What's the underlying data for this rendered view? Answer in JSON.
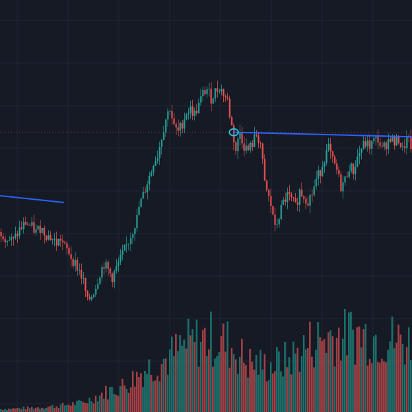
{
  "chart_data": {
    "type": "candlestick",
    "title": "",
    "xlabel": "",
    "ylabel": "",
    "grid": true,
    "legend": "none",
    "colors": {
      "background": "#161a25",
      "grid": "#1f2533",
      "up": "#26a69a",
      "down": "#ef5350",
      "volume_up": "#1f7e77",
      "volume_down": "#b8474a",
      "trendline": "#2962ff",
      "marker": "#26c6da",
      "price_line": "#ef5350"
    },
    "price_axis": {
      "min": 0,
      "max": 100
    },
    "volume_axis": {
      "min": 0,
      "max": 100
    },
    "price_path": [
      [
        0,
        34
      ],
      [
        3,
        31
      ],
      [
        6,
        30
      ],
      [
        9,
        35
      ],
      [
        12,
        38
      ],
      [
        15,
        36
      ],
      [
        17,
        34
      ],
      [
        19,
        36
      ],
      [
        22,
        33
      ],
      [
        25,
        31
      ],
      [
        27,
        29
      ],
      [
        29,
        31
      ],
      [
        31,
        27
      ],
      [
        33,
        25
      ],
      [
        34,
        23
      ],
      [
        36,
        20
      ],
      [
        38,
        17
      ],
      [
        40,
        12
      ],
      [
        42,
        3
      ],
      [
        44,
        6
      ],
      [
        46,
        10
      ],
      [
        48,
        16
      ],
      [
        50,
        20
      ],
      [
        52,
        17
      ],
      [
        54,
        14
      ],
      [
        56,
        18
      ],
      [
        58,
        22
      ],
      [
        60,
        26
      ],
      [
        62,
        30
      ],
      [
        64,
        35
      ],
      [
        66,
        40
      ],
      [
        67,
        45
      ],
      [
        69,
        50
      ],
      [
        71,
        56
      ],
      [
        73,
        61
      ],
      [
        74,
        65
      ],
      [
        76,
        68
      ],
      [
        78,
        76
      ],
      [
        80,
        84
      ],
      [
        82,
        89
      ],
      [
        84,
        80
      ],
      [
        86,
        78
      ],
      [
        88,
        82
      ],
      [
        90,
        87
      ],
      [
        92,
        88
      ],
      [
        94,
        86
      ],
      [
        96,
        90
      ],
      [
        98,
        95
      ],
      [
        100,
        97
      ],
      [
        102,
        93
      ],
      [
        104,
        96
      ],
      [
        106,
        98
      ],
      [
        108,
        95
      ],
      [
        110,
        92
      ],
      [
        111,
        86
      ],
      [
        113,
        75
      ],
      [
        114,
        70
      ],
      [
        116,
        78
      ],
      [
        118,
        72
      ],
      [
        120,
        70
      ],
      [
        122,
        73
      ],
      [
        124,
        77
      ],
      [
        126,
        73
      ],
      [
        128,
        55
      ],
      [
        130,
        49
      ],
      [
        132,
        42
      ],
      [
        133,
        35
      ],
      [
        135,
        41
      ],
      [
        137,
        47
      ],
      [
        139,
        50
      ],
      [
        141,
        48
      ],
      [
        143,
        45
      ],
      [
        145,
        52
      ],
      [
        147,
        50
      ],
      [
        149,
        48
      ],
      [
        151,
        51
      ],
      [
        153,
        57
      ],
      [
        155,
        61
      ],
      [
        157,
        67
      ],
      [
        159,
        71
      ],
      [
        161,
        65
      ],
      [
        163,
        61
      ],
      [
        165,
        54
      ],
      [
        167,
        57
      ],
      [
        169,
        63
      ],
      [
        171,
        61
      ],
      [
        173,
        67
      ],
      [
        175,
        71
      ],
      [
        177,
        73
      ],
      [
        179,
        72
      ],
      [
        181,
        74
      ],
      [
        183,
        75
      ],
      [
        185,
        70
      ],
      [
        187,
        73
      ],
      [
        189,
        76
      ],
      [
        191,
        73
      ],
      [
        193,
        75
      ],
      [
        195,
        70
      ],
      [
        197,
        75
      ],
      [
        199,
        72
      ]
    ],
    "trendlines": [
      {
        "from": [
          0,
          50
        ],
        "to": [
          30,
          47
        ]
      },
      {
        "from": [
          113,
          78
        ],
        "to": [
          199,
          76
        ]
      }
    ],
    "marker": {
      "x": 113,
      "y": 78
    },
    "price_line_y": 78,
    "volume_profile": [
      [
        0,
        3
      ],
      [
        10,
        4
      ],
      [
        20,
        5
      ],
      [
        30,
        7
      ],
      [
        40,
        10
      ],
      [
        50,
        20
      ],
      [
        60,
        28
      ],
      [
        70,
        45
      ],
      [
        80,
        55
      ],
      [
        90,
        70
      ],
      [
        100,
        78
      ],
      [
        110,
        72
      ],
      [
        120,
        52
      ],
      [
        130,
        48
      ],
      [
        140,
        55
      ],
      [
        150,
        72
      ],
      [
        160,
        80
      ],
      [
        170,
        82
      ],
      [
        180,
        80
      ],
      [
        190,
        76
      ],
      [
        199,
        72
      ]
    ]
  }
}
